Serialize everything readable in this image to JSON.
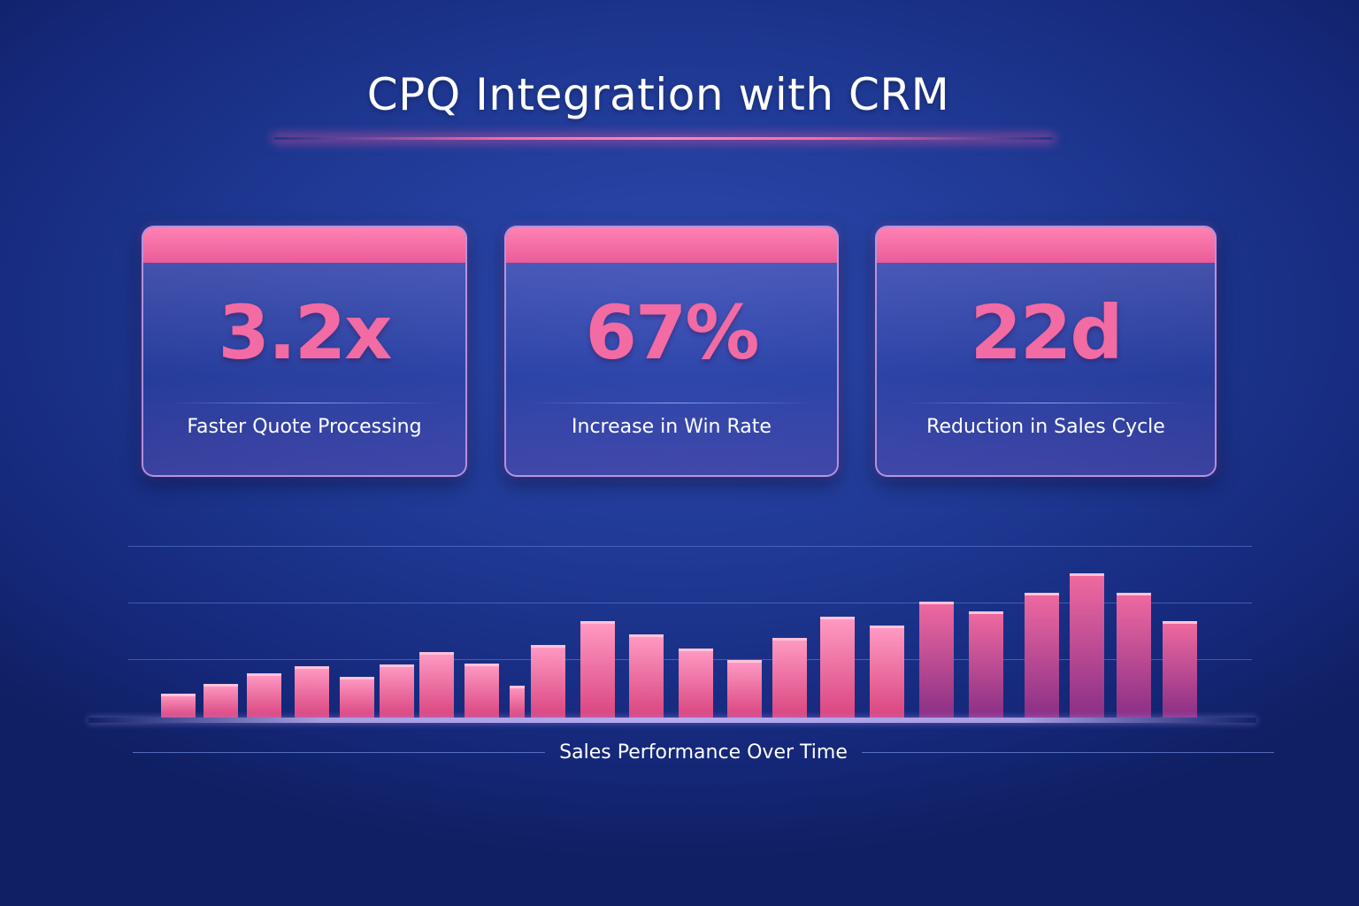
{
  "header": {
    "title": "CPQ Integration with CRM"
  },
  "colors": {
    "accent": "#f26ba2",
    "background": "#1f3994",
    "card_header": "#f277aa"
  },
  "cards": [
    {
      "value": "3.2x",
      "label": "Faster Quote Processing"
    },
    {
      "value": "67%",
      "label": "Increase in Win Rate"
    },
    {
      "value": "22d",
      "label": "Reduction in Sales Cycle"
    }
  ],
  "chart_data": {
    "type": "bar",
    "title": "Sales Performance Over Time",
    "xlabel": "",
    "ylabel": "",
    "grid": true,
    "legend": "none",
    "values": [
      27,
      38,
      50,
      58,
      46,
      60,
      74,
      61,
      36,
      82,
      109,
      94,
      78,
      65,
      90,
      114,
      104,
      131,
      120,
      141,
      163,
      141,
      109
    ],
    "ylim": [
      0,
      195
    ]
  }
}
